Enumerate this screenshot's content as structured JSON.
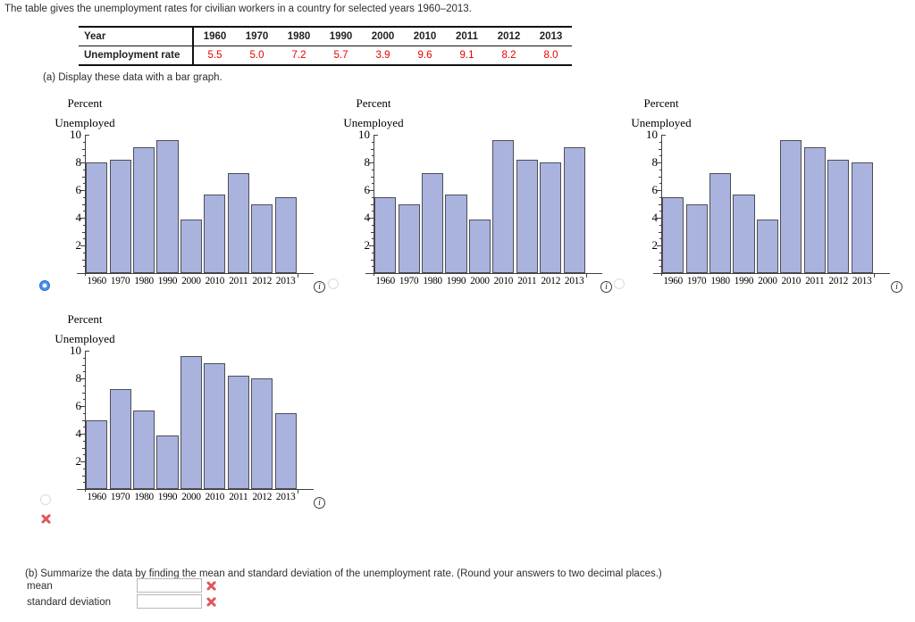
{
  "question": {
    "prompt": "The table gives the unemployment rates for civilian workers in a country for selected years 1960–2013.",
    "part_a": "(a) Display these data with a bar graph.",
    "part_b": "(b) Summarize the data by finding the mean and standard deviation of the unemployment rate. (Round your answers to two decimal places.)"
  },
  "table": {
    "row_headers": [
      "Year",
      "Unemployment rate"
    ],
    "years": [
      "1960",
      "1970",
      "1980",
      "1990",
      "2000",
      "2010",
      "2011",
      "2012",
      "2013"
    ],
    "rates": [
      "5.5",
      "5.0",
      "7.2",
      "5.7",
      "3.9",
      "9.6",
      "9.1",
      "8.2",
      "8.0"
    ]
  },
  "chart_data": [
    {
      "type": "bar",
      "option": "A",
      "selected": true,
      "marked_incorrect": false,
      "ylabel_lines": [
        "Percent",
        "Unemployed"
      ],
      "categories": [
        "1960",
        "1970",
        "1980",
        "1990",
        "2000",
        "2010",
        "2011",
        "2012",
        "2013"
      ],
      "values": [
        8.0,
        8.2,
        9.1,
        9.6,
        3.9,
        5.7,
        7.2,
        5.0,
        5.5
      ],
      "ylim": [
        0,
        10
      ],
      "yticks": [
        2,
        4,
        6,
        8,
        10
      ],
      "grid": false
    },
    {
      "type": "bar",
      "option": "B",
      "selected": false,
      "marked_incorrect": false,
      "ylabel_lines": [
        "Percent",
        "Unemployed"
      ],
      "categories": [
        "1960",
        "1970",
        "1980",
        "1990",
        "2000",
        "2010",
        "2011",
        "2012",
        "2013"
      ],
      "values": [
        5.5,
        5.0,
        7.2,
        5.7,
        3.9,
        9.6,
        8.2,
        8.0,
        9.1
      ],
      "ylim": [
        0,
        10
      ],
      "yticks": [
        2,
        4,
        6,
        8,
        10
      ],
      "grid": false
    },
    {
      "type": "bar",
      "option": "C",
      "selected": false,
      "marked_incorrect": false,
      "ylabel_lines": [
        "Percent",
        "Unemployed"
      ],
      "categories": [
        "1960",
        "1970",
        "1980",
        "1990",
        "2000",
        "2010",
        "2011",
        "2012",
        "2013"
      ],
      "values": [
        5.5,
        5.0,
        7.2,
        5.7,
        3.9,
        9.6,
        9.1,
        8.2,
        8.0
      ],
      "ylim": [
        0,
        10
      ],
      "yticks": [
        2,
        4,
        6,
        8,
        10
      ],
      "grid": false
    },
    {
      "type": "bar",
      "option": "D",
      "selected": false,
      "marked_incorrect": true,
      "ylabel_lines": [
        "Percent",
        "Unemployed"
      ],
      "categories": [
        "1960",
        "1970",
        "1980",
        "1990",
        "2000",
        "2010",
        "2011",
        "2012",
        "2013"
      ],
      "values": [
        5.0,
        7.2,
        5.7,
        3.9,
        9.6,
        9.1,
        8.2,
        8.0,
        5.5
      ],
      "ylim": [
        0,
        10
      ],
      "yticks": [
        2,
        4,
        6,
        8,
        10
      ],
      "grid": false
    }
  ],
  "answers": {
    "mean_label": "mean",
    "mean_value": "",
    "mean_status": "incorrect",
    "std_label": "standard deviation",
    "std_value": "",
    "std_status": "incorrect"
  },
  "icons": {
    "info_glyph": "i"
  },
  "colors": {
    "bar_fill": "#a9b3de",
    "bar_edge": "#4e4e58",
    "axis": "#3f3f3f",
    "rate_text": "#e80000",
    "selected_radio_blue": "#1e63cf",
    "error_red": "#e25757",
    "table_border": "#111111"
  }
}
